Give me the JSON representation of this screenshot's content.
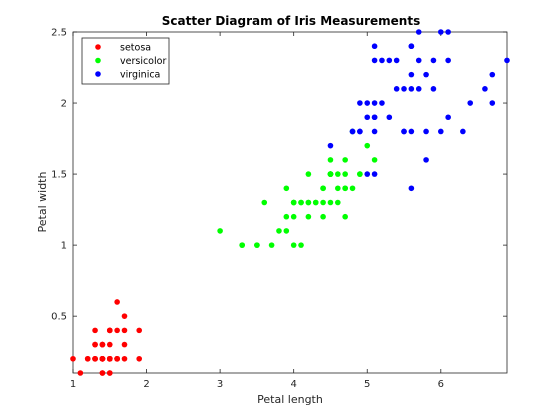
{
  "chart_data": {
    "type": "scatter",
    "title": "Scatter Diagram of Iris Measurements",
    "xlabel": "Petal length",
    "ylabel": "Petal width",
    "xlim": [
      1,
      6.9
    ],
    "ylim": [
      0.1,
      2.5
    ],
    "xticks": [
      1,
      2,
      3,
      4,
      5,
      6
    ],
    "yticks": [
      0.5,
      1,
      1.5,
      2,
      2.5
    ],
    "xtick_labels": [
      "1",
      "2",
      "3",
      "4",
      "5",
      "6"
    ],
    "ytick_labels": [
      "0.5",
      "1",
      "1.5",
      "2",
      "2.5"
    ],
    "grid": false,
    "legend_position": "top-left",
    "series": [
      {
        "name": "setosa",
        "color": "#ff0000",
        "points": [
          [
            1.4,
            0.2
          ],
          [
            1.4,
            0.2
          ],
          [
            1.3,
            0.2
          ],
          [
            1.5,
            0.2
          ],
          [
            1.4,
            0.2
          ],
          [
            1.7,
            0.4
          ],
          [
            1.4,
            0.3
          ],
          [
            1.5,
            0.2
          ],
          [
            1.4,
            0.2
          ],
          [
            1.5,
            0.1
          ],
          [
            1.5,
            0.2
          ],
          [
            1.6,
            0.2
          ],
          [
            1.4,
            0.1
          ],
          [
            1.1,
            0.1
          ],
          [
            1.2,
            0.2
          ],
          [
            1.5,
            0.4
          ],
          [
            1.3,
            0.4
          ],
          [
            1.4,
            0.3
          ],
          [
            1.7,
            0.3
          ],
          [
            1.5,
            0.3
          ],
          [
            1.7,
            0.2
          ],
          [
            1.5,
            0.4
          ],
          [
            1.0,
            0.2
          ],
          [
            1.7,
            0.5
          ],
          [
            1.9,
            0.2
          ],
          [
            1.6,
            0.2
          ],
          [
            1.6,
            0.4
          ],
          [
            1.5,
            0.2
          ],
          [
            1.4,
            0.2
          ],
          [
            1.6,
            0.2
          ],
          [
            1.6,
            0.2
          ],
          [
            1.5,
            0.4
          ],
          [
            1.5,
            0.1
          ],
          [
            1.4,
            0.2
          ],
          [
            1.5,
            0.2
          ],
          [
            1.2,
            0.2
          ],
          [
            1.3,
            0.2
          ],
          [
            1.4,
            0.1
          ],
          [
            1.3,
            0.2
          ],
          [
            1.5,
            0.2
          ],
          [
            1.3,
            0.3
          ],
          [
            1.3,
            0.3
          ],
          [
            1.3,
            0.2
          ],
          [
            1.6,
            0.6
          ],
          [
            1.9,
            0.4
          ],
          [
            1.4,
            0.3
          ],
          [
            1.6,
            0.2
          ],
          [
            1.4,
            0.2
          ],
          [
            1.5,
            0.2
          ],
          [
            1.4,
            0.2
          ]
        ]
      },
      {
        "name": "versicolor",
        "color": "#00ff00",
        "points": [
          [
            4.7,
            1.4
          ],
          [
            4.5,
            1.5
          ],
          [
            4.9,
            1.5
          ],
          [
            4.0,
            1.3
          ],
          [
            4.6,
            1.5
          ],
          [
            4.5,
            1.3
          ],
          [
            4.7,
            1.6
          ],
          [
            3.3,
            1.0
          ],
          [
            4.6,
            1.3
          ],
          [
            3.9,
            1.4
          ],
          [
            3.5,
            1.0
          ],
          [
            4.2,
            1.5
          ],
          [
            4.0,
            1.0
          ],
          [
            4.7,
            1.4
          ],
          [
            3.6,
            1.3
          ],
          [
            4.4,
            1.4
          ],
          [
            4.5,
            1.5
          ],
          [
            4.1,
            1.0
          ],
          [
            4.5,
            1.5
          ],
          [
            3.9,
            1.1
          ],
          [
            4.8,
            1.8
          ],
          [
            4.0,
            1.3
          ],
          [
            4.9,
            1.5
          ],
          [
            4.7,
            1.2
          ],
          [
            4.3,
            1.3
          ],
          [
            4.4,
            1.4
          ],
          [
            4.8,
            1.4
          ],
          [
            5.0,
            1.7
          ],
          [
            4.5,
            1.5
          ],
          [
            3.5,
            1.0
          ],
          [
            3.8,
            1.1
          ],
          [
            3.7,
            1.0
          ],
          [
            3.9,
            1.2
          ],
          [
            5.1,
            1.6
          ],
          [
            4.5,
            1.5
          ],
          [
            4.5,
            1.6
          ],
          [
            4.7,
            1.5
          ],
          [
            4.4,
            1.3
          ],
          [
            4.1,
            1.3
          ],
          [
            4.0,
            1.3
          ],
          [
            4.4,
            1.2
          ],
          [
            4.6,
            1.4
          ],
          [
            4.0,
            1.2
          ],
          [
            3.3,
            1.0
          ],
          [
            4.2,
            1.3
          ],
          [
            4.2,
            1.2
          ],
          [
            4.2,
            1.3
          ],
          [
            4.3,
            1.3
          ],
          [
            3.0,
            1.1
          ],
          [
            4.1,
            1.3
          ]
        ]
      },
      {
        "name": "virginica",
        "color": "#0000ff",
        "points": [
          [
            6.0,
            2.5
          ],
          [
            5.1,
            1.9
          ],
          [
            5.9,
            2.1
          ],
          [
            5.6,
            1.8
          ],
          [
            5.8,
            2.2
          ],
          [
            6.6,
            2.1
          ],
          [
            4.5,
            1.7
          ],
          [
            6.3,
            1.8
          ],
          [
            5.8,
            1.8
          ],
          [
            6.1,
            2.5
          ],
          [
            5.1,
            2.0
          ],
          [
            5.3,
            1.9
          ],
          [
            5.5,
            2.1
          ],
          [
            5.0,
            2.0
          ],
          [
            5.1,
            2.4
          ],
          [
            5.3,
            2.3
          ],
          [
            5.5,
            1.8
          ],
          [
            6.7,
            2.2
          ],
          [
            6.9,
            2.3
          ],
          [
            5.0,
            1.5
          ],
          [
            5.7,
            2.3
          ],
          [
            4.9,
            2.0
          ],
          [
            6.7,
            2.0
          ],
          [
            4.9,
            1.8
          ],
          [
            5.7,
            2.1
          ],
          [
            6.0,
            1.8
          ],
          [
            4.8,
            1.8
          ],
          [
            4.9,
            1.8
          ],
          [
            5.6,
            2.1
          ],
          [
            5.8,
            1.6
          ],
          [
            6.1,
            1.9
          ],
          [
            6.4,
            2.0
          ],
          [
            5.6,
            2.2
          ],
          [
            5.1,
            1.5
          ],
          [
            5.6,
            1.4
          ],
          [
            6.1,
            2.3
          ],
          [
            5.6,
            2.4
          ],
          [
            5.5,
            1.8
          ],
          [
            4.8,
            1.8
          ],
          [
            5.4,
            2.1
          ],
          [
            5.6,
            2.4
          ],
          [
            5.1,
            2.3
          ],
          [
            5.1,
            1.9
          ],
          [
            5.9,
            2.3
          ],
          [
            5.7,
            2.5
          ],
          [
            5.2,
            2.3
          ],
          [
            5.0,
            1.9
          ],
          [
            5.2,
            2.0
          ],
          [
            5.4,
            2.3
          ],
          [
            5.1,
            1.8
          ]
        ]
      }
    ]
  }
}
